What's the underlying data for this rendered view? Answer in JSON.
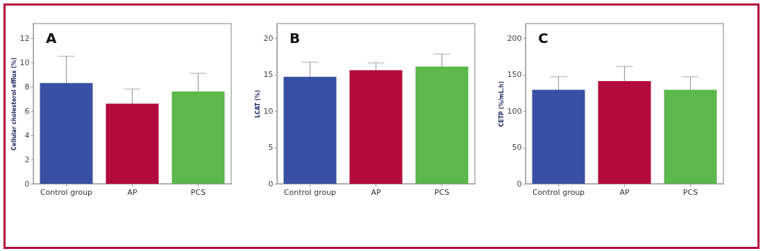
{
  "chart_data": [
    {
      "type": "bar",
      "title": "A",
      "ylabel": "Cellular cholesterol efflux (%)",
      "categories": [
        "Control group",
        "AP",
        "PCS"
      ],
      "values": [
        8.3,
        6.6,
        7.6
      ],
      "errors": [
        2.2,
        1.2,
        1.5
      ],
      "colors": [
        "#3850a3",
        "#b20a3a",
        "#5bb84a"
      ],
      "ylim": [
        0,
        13.2
      ],
      "yticks": [
        0,
        2,
        4,
        6,
        8,
        10,
        12
      ],
      "grid": false
    },
    {
      "type": "bar",
      "title": "B",
      "ylabel": "LCAT (%)",
      "categories": [
        "Control group",
        "AP",
        "PCS"
      ],
      "values": [
        14.7,
        15.6,
        16.1
      ],
      "errors": [
        2.0,
        1.0,
        1.7
      ],
      "colors": [
        "#3850a3",
        "#b20a3a",
        "#5bb84a"
      ],
      "ylim": [
        0,
        22
      ],
      "yticks": [
        0,
        5,
        10,
        15,
        20
      ],
      "grid": false
    },
    {
      "type": "bar",
      "title": "C",
      "ylabel": "CETP (%/mL.h)",
      "categories": [
        "Control group",
        "AP",
        "PCS"
      ],
      "values": [
        129,
        141,
        129
      ],
      "errors": [
        18,
        20,
        18
      ],
      "colors": [
        "#3850a3",
        "#b20a3a",
        "#5bb84a"
      ],
      "ylim": [
        0,
        220
      ],
      "yticks": [
        0,
        50,
        100,
        150,
        200
      ],
      "grid": false
    }
  ]
}
